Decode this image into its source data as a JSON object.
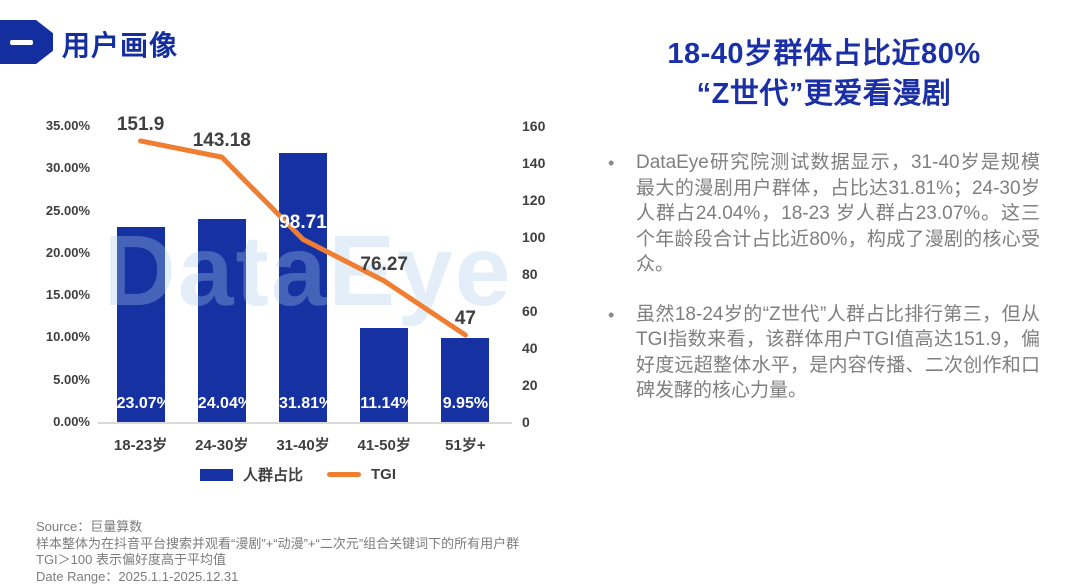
{
  "header": {
    "badge_label": "一",
    "title": "用户画像"
  },
  "right_panel": {
    "title_line1": "18-40岁群体占比近80%",
    "title_line2": "“Z世代”更爱看漫剧",
    "bullet_marker": "•",
    "bullets": [
      "DataEye研究院测试数据显示，31-40岁是规模最大的漫剧用户群体，占比达31.81%；24-30岁人群占24.04%，18-23 岁人群占23.07%。这三个年龄段合计占比近80%，构成了漫剧的核心受众。",
      "虽然18-24岁的“Z世代”人群占比排行第三，但从TGI指数来看，该群体用户TGI值高达151.9，偏好度远超整体水平，是内容传播、二次创作和口碑发酵的核心力量。"
    ]
  },
  "chart_data": {
    "type": "combo",
    "categories": [
      "18-23岁",
      "24-30岁",
      "31-40岁",
      "41-50岁",
      "51岁+"
    ],
    "series": [
      {
        "name": "人群占比",
        "type": "bar",
        "axis": "left",
        "values": [
          23.07,
          24.04,
          31.81,
          11.14,
          9.95
        ],
        "labels": [
          "23.07%",
          "24.04%",
          "31.81%",
          "11.14%",
          "9.95%"
        ],
        "color": "#1632A2"
      },
      {
        "name": "TGI",
        "type": "line",
        "axis": "right",
        "values": [
          151.9,
          143.18,
          98.71,
          76.27,
          47
        ],
        "labels": [
          "151.9",
          "143.18",
          "98.71",
          "76.27",
          "47"
        ],
        "label_colors": [
          "#3F3F3F",
          "#3F3F3F",
          "#FFFFFF",
          "#3F3F3F",
          "#3F3F3F"
        ],
        "color": "#F07E32"
      }
    ],
    "left_axis": {
      "min": 0,
      "max": 35,
      "ticks": [
        "0.00%",
        "5.00%",
        "10.00%",
        "15.00%",
        "20.00%",
        "25.00%",
        "30.00%",
        "35.00%"
      ]
    },
    "right_axis": {
      "min": 0,
      "max": 160,
      "ticks": [
        "0",
        "20",
        "40",
        "60",
        "80",
        "100",
        "120",
        "140",
        "160"
      ]
    },
    "legend": [
      "人群占比",
      "TGI"
    ],
    "legend_position": "bottom",
    "grid": false,
    "watermark": "DataEye"
  },
  "footer": {
    "lines": [
      "Source：巨量算数",
      "样本整体为在抖音平台搜索并观看“漫剧”+“动漫”+“二次元”组合关键词下的所有用户群",
      "TGI＞100 表示偏好度高于平均值",
      "Date Range：2025.1.1-2025.12.31"
    ]
  }
}
